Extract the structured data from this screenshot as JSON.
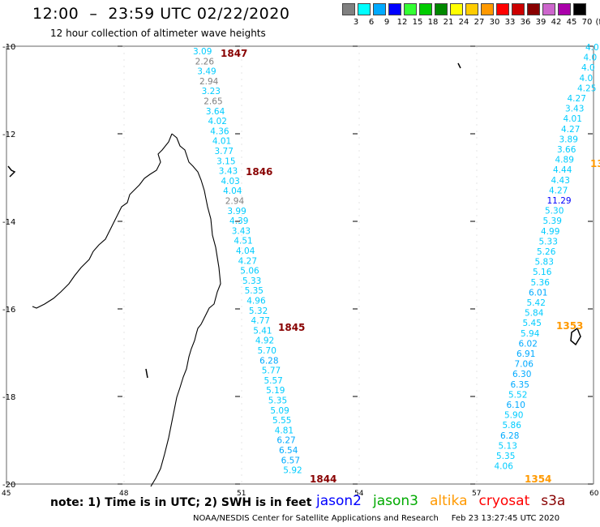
{
  "header": {
    "title": "12:00  –  23:59 UTC 02/22/2020",
    "subtitle": "12 hour collection of altimeter wave heights"
  },
  "color_scale": {
    "colors": [
      "#808080",
      "#00ffff",
      "#00aaff",
      "#0000ff",
      "#33ff33",
      "#00cc00",
      "#008800",
      "#ffff00",
      "#ffcc00",
      "#ff9900",
      "#ff0000",
      "#cc0000",
      "#880000",
      "#cc66cc",
      "#aa00aa",
      "#000000"
    ],
    "labels": [
      "3",
      "6",
      "9",
      "12",
      "15",
      "18",
      "21",
      "24",
      "27",
      "30",
      "33",
      "36",
      "39",
      "42",
      "45",
      "70",
      "(ft)"
    ]
  },
  "axes": {
    "lat_labels": [
      "-10",
      "-12",
      "-14",
      "-16",
      "-18",
      "-20"
    ],
    "lon_labels": [
      "45",
      "48",
      "51",
      "54",
      "57",
      "60"
    ]
  },
  "tracks": {
    "west_times": [
      "1847",
      "1846",
      "1845",
      "1844"
    ],
    "east_times": [
      "1353",
      "1354"
    ],
    "east_partial_time": "13",
    "west_values": [
      "3.09",
      "2.26",
      "3.49",
      "2.94",
      "3.23",
      "2.65",
      "3.64",
      "4.02",
      "4.36",
      "4.01",
      "3.77",
      "3.15",
      "3.43",
      "4.03",
      "4.04",
      "2.94",
      "3.99",
      "4.39",
      "3.43",
      "4.51",
      "4.04",
      "4.27",
      "5.06",
      "5.33",
      "5.35",
      "4.96",
      "5.32",
      "4.77",
      "5.41",
      "4.92",
      "5.70",
      "6.28",
      "5.77",
      "5.57",
      "5.19",
      "5.35",
      "5.09",
      "5.55",
      "4.81",
      "6.27",
      "6.54",
      "6.57",
      "5.92"
    ],
    "east_values": [
      "4.0",
      "4.0",
      "4.0",
      "4.0",
      "4.25",
      "4.27",
      "3.43",
      "4.01",
      "4.27",
      "3.89",
      "3.66",
      "4.89",
      "4.44",
      "4.43",
      "4.27",
      "11.29",
      "5.30",
      "5.39",
      "4.99",
      "5.33",
      "5.26",
      "5.83",
      "5.16",
      "5.36",
      "6.01",
      "5.42",
      "5.84",
      "5.45",
      "5.94",
      "6.02",
      "6.91",
      "7.06",
      "6.30",
      "6.35",
      "5.52",
      "6.10",
      "5.90",
      "5.86",
      "6.28",
      "5.13",
      "5.35",
      "4.06"
    ]
  },
  "footer": {
    "note": "note:  1) Time is in UTC;  2) SWH is in feet",
    "missions": [
      {
        "name": "jason2",
        "color": "#0000ff"
      },
      {
        "name": "jason3",
        "color": "#00aa00"
      },
      {
        "name": "altika",
        "color": "#ff9900"
      },
      {
        "name": "cryosat",
        "color": "#ff0000"
      },
      {
        "name": "s3a",
        "color": "#880000"
      }
    ],
    "credit": "NOAA/NESDIS Center for Satellite Applications and Research     Feb 23 13:27:45 UTC 2020"
  },
  "colors": {
    "time_label": "#880000",
    "altika_time": "#ff9900",
    "track_low": "#808080",
    "track_mid": "#00ccff",
    "track_high": "#00aaff",
    "track_12": "#0000ff"
  }
}
